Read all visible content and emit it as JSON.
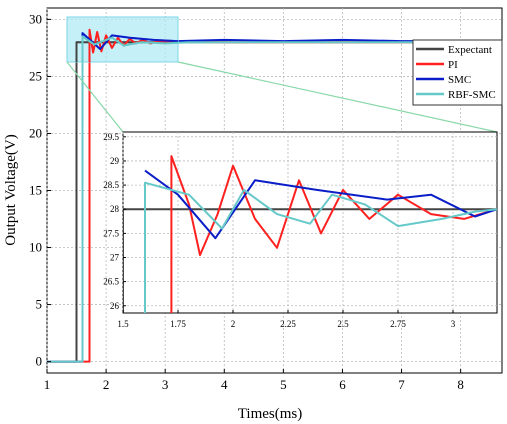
{
  "chart_data": [
    {
      "type": "line",
      "xlabel": "Times(ms)",
      "ylabel": "Output Voltage(V)",
      "xlim": [
        1,
        8.7
      ],
      "ylim": [
        -1,
        31
      ],
      "xticks": [
        1,
        2,
        3,
        4,
        5,
        6,
        7,
        8
      ],
      "yticks": [
        0,
        5,
        10,
        15,
        20,
        25,
        30
      ],
      "grid": true,
      "legend_position": "top-right",
      "series": [
        {
          "name": "Expectant",
          "color": "#444444",
          "x": [
            1,
            1.5,
            1.5,
            8.7
          ],
          "y": [
            0,
            0,
            28,
            28
          ]
        },
        {
          "name": "PI",
          "color": "#ff2020",
          "x": [
            1,
            1.72,
            1.72,
            1.78,
            1.85,
            1.92,
            2.0,
            2.1,
            2.2,
            2.3,
            2.4,
            2.5,
            2.62,
            2.75,
            2.9,
            3.1,
            3.5,
            4.0,
            8.7
          ],
          "y": [
            0,
            0,
            29.1,
            27.1,
            28.9,
            27.2,
            28.6,
            27.5,
            28.4,
            27.7,
            28.3,
            27.9,
            28.2,
            27.9,
            28.1,
            28.0,
            28.05,
            28.0,
            28.0
          ]
        },
        {
          "name": "SMC",
          "color": "#0a1ec8",
          "x": [
            1,
            1.6,
            1.6,
            1.9,
            2.1,
            2.4,
            2.8,
            3.2,
            4.0,
            5.0,
            6.0,
            7.0,
            8.7
          ],
          "y": [
            0,
            0,
            28.8,
            27.4,
            28.6,
            28.4,
            28.2,
            28.1,
            28.2,
            28.1,
            28.2,
            28.1,
            28.1
          ]
        },
        {
          "name": "RBF-SMC",
          "color": "#66c9c9",
          "x": [
            1,
            1.6,
            1.6,
            1.8,
            2.1,
            2.3,
            2.6,
            3.0,
            3.4,
            4.0,
            5.0,
            6.0,
            7.0,
            8.7
          ],
          "y": [
            0,
            0,
            28.5,
            27.8,
            28.4,
            27.7,
            28.0,
            27.9,
            28.0,
            28.0,
            28.0,
            28.0,
            28.0,
            28.0
          ]
        }
      ]
    },
    {
      "type": "line",
      "inset": true,
      "xlim": [
        1.5,
        3.2
      ],
      "ylim": [
        25.85,
        29.6
      ],
      "xticks": [
        "1.5",
        "1.75",
        "2",
        "2.25",
        "2.5",
        "2.75",
        "3"
      ],
      "yticks": [
        "26",
        "26.5",
        "27",
        "27.5",
        "28",
        "28.5",
        "29",
        "29.5"
      ],
      "grid": true,
      "series": [
        {
          "name": "Expectant",
          "color": "#444444",
          "x": [
            1.5,
            1.5,
            3.2
          ],
          "y": [
            25.85,
            28,
            28
          ]
        },
        {
          "name": "PI",
          "color": "#ff2020",
          "x": [
            1.72,
            1.72,
            1.8,
            1.85,
            1.93,
            2.0,
            2.1,
            2.2,
            2.3,
            2.4,
            2.5,
            2.62,
            2.75,
            2.9,
            3.05,
            3.2
          ],
          "y": [
            25.85,
            29.1,
            28.1,
            27.05,
            27.9,
            28.9,
            27.8,
            27.2,
            28.6,
            27.5,
            28.4,
            27.8,
            28.3,
            27.9,
            27.8,
            28.0
          ]
        },
        {
          "name": "SMC",
          "color": "#0a1ec8",
          "x": [
            1.6,
            1.75,
            1.92,
            2.1,
            2.38,
            2.7,
            2.9,
            3.1,
            3.2
          ],
          "y": [
            28.8,
            28.3,
            27.4,
            28.6,
            28.4,
            28.2,
            28.3,
            27.85,
            28.0
          ]
        },
        {
          "name": "RBF-SMC",
          "color": "#66c9c9",
          "x": [
            1.6,
            1.6,
            1.8,
            1.95,
            2.05,
            2.2,
            2.35,
            2.45,
            2.6,
            2.75,
            2.95,
            3.1,
            3.2
          ],
          "y": [
            25.85,
            28.55,
            28.3,
            27.6,
            28.4,
            27.9,
            27.7,
            28.3,
            28.1,
            27.65,
            27.8,
            27.95,
            28.0
          ]
        }
      ]
    }
  ]
}
